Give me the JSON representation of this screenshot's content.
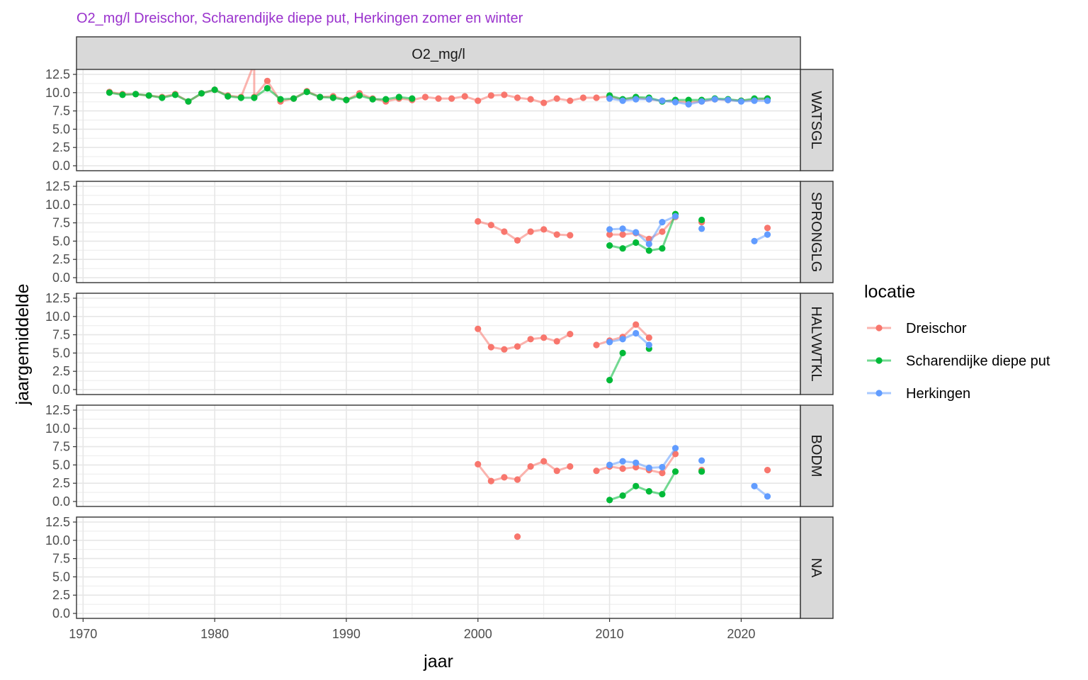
{
  "title": "O2_mg/l Dreischor, Scharendijke diepe put, Herkingen zomer en winter",
  "colors": {
    "title": "#9a32cd",
    "Dreischor": "#f8766d",
    "Scharendijke diepe put": "#00ba38",
    "Herkingen": "#619cff"
  },
  "chart_data": {
    "type": "line",
    "column_strip": "O2_mg/l",
    "xlabel": "jaar",
    "ylabel": "jaargemiddelde",
    "xlim": [
      1969.5,
      2024.5
    ],
    "ylim": [
      0,
      12.5
    ],
    "x_ticks": [
      "1970",
      "1980",
      "1990",
      "2000",
      "2010",
      "2020"
    ],
    "y_ticks": [
      "0.0",
      "2.5",
      "5.0",
      "7.5",
      "10.0",
      "12.5"
    ],
    "grid": true,
    "legend": {
      "title": "locatie",
      "position": "right",
      "entries": [
        "Dreischor",
        "Scharendijke diepe put",
        "Herkingen"
      ]
    },
    "panels": [
      {
        "name": "WATSGL",
        "series": [
          {
            "name": "Dreischor",
            "points": [
              [
                1972,
                10.1
              ],
              [
                1973,
                9.8
              ],
              [
                1974,
                9.8
              ],
              [
                1975,
                9.6
              ],
              [
                1976,
                9.4
              ],
              [
                1977,
                9.8
              ],
              [
                1978,
                8.8
              ],
              [
                1979,
                9.9
              ],
              [
                1980,
                10.4
              ],
              [
                1981,
                9.6
              ],
              [
                1982,
                9.4
              ],
              [
                1983,
                14.0
              ],
              [
                1983,
                9.4
              ],
              [
                1984,
                11.6
              ],
              [
                1985,
                8.8
              ],
              [
                1986,
                9.2
              ],
              [
                1987,
                10.2
              ],
              [
                1988,
                9.4
              ],
              [
                1989,
                9.5
              ],
              [
                1990,
                9.0
              ],
              [
                1991,
                9.9
              ],
              [
                1992,
                9.2
              ],
              [
                1993,
                8.8
              ],
              [
                1994,
                9.2
              ],
              [
                1995,
                9.0
              ],
              [
                1996,
                9.4
              ],
              [
                1997,
                9.2
              ],
              [
                1998,
                9.2
              ],
              [
                1999,
                9.5
              ],
              [
                2000,
                8.9
              ],
              [
                2001,
                9.6
              ],
              [
                2002,
                9.7
              ],
              [
                2003,
                9.3
              ],
              [
                2004,
                9.1
              ],
              [
                2005,
                8.6
              ],
              [
                2006,
                9.2
              ],
              [
                2007,
                8.9
              ],
              [
                2008,
                9.3
              ],
              [
                2009,
                9.3
              ],
              [
                2010,
                9.5
              ],
              [
                2011,
                9.0
              ],
              [
                2012,
                9.3
              ],
              [
                2013,
                9.1
              ],
              [
                2014,
                8.9
              ],
              [
                2015,
                8.8
              ],
              [
                2016,
                8.7
              ],
              [
                2017,
                8.8
              ],
              [
                2018,
                9.1
              ],
              [
                2019,
                9.0
              ],
              [
                2020,
                8.9
              ],
              [
                2021,
                9.0
              ],
              [
                2022,
                9.2
              ]
            ]
          },
          {
            "name": "Scharendijke diepe put",
            "points": [
              [
                1972,
                10.0
              ],
              [
                1973,
                9.7
              ],
              [
                1974,
                9.8
              ],
              [
                1975,
                9.6
              ],
              [
                1976,
                9.3
              ],
              [
                1977,
                9.7
              ],
              [
                1978,
                8.8
              ],
              [
                1979,
                9.9
              ],
              [
                1980,
                10.4
              ],
              [
                1981,
                9.5
              ],
              [
                1982,
                9.3
              ],
              [
                1983,
                9.3
              ],
              [
                1984,
                10.6
              ],
              [
                1985,
                9.1
              ],
              [
                1986,
                9.2
              ],
              [
                1987,
                10.1
              ],
              [
                1988,
                9.4
              ],
              [
                1989,
                9.3
              ],
              [
                1990,
                9.0
              ],
              [
                1991,
                9.6
              ],
              [
                1992,
                9.1
              ],
              [
                1993,
                9.1
              ],
              [
                1994,
                9.4
              ],
              [
                1995,
                9.2
              ],
              [
                null,
                null
              ],
              [
                2010,
                9.6
              ],
              [
                2011,
                9.1
              ],
              [
                2012,
                9.4
              ],
              [
                2013,
                9.3
              ],
              [
                2014,
                8.8
              ],
              [
                2015,
                9.0
              ],
              [
                2016,
                9.0
              ],
              [
                2017,
                9.0
              ],
              [
                2018,
                9.2
              ],
              [
                2019,
                9.1
              ],
              [
                2020,
                8.9
              ],
              [
                2021,
                9.2
              ],
              [
                2022,
                9.2
              ]
            ]
          },
          {
            "name": "Herkingen",
            "points": [
              [
                2010,
                9.2
              ],
              [
                2011,
                8.9
              ],
              [
                2012,
                9.1
              ],
              [
                2013,
                9.1
              ],
              [
                2014,
                8.9
              ],
              [
                2015,
                8.7
              ],
              [
                2016,
                8.4
              ],
              [
                2017,
                8.8
              ],
              [
                2018,
                9.1
              ],
              [
                2019,
                9.0
              ],
              [
                2020,
                8.8
              ],
              [
                2021,
                8.9
              ],
              [
                2022,
                8.9
              ]
            ]
          }
        ]
      },
      {
        "name": "SPRONGLG",
        "series": [
          {
            "name": "Dreischor",
            "points": [
              [
                2000,
                7.7
              ],
              [
                2001,
                7.2
              ],
              [
                2002,
                6.3
              ],
              [
                2003,
                5.1
              ],
              [
                2004,
                6.3
              ],
              [
                2005,
                6.6
              ],
              [
                2006,
                5.9
              ],
              [
                2007,
                5.8
              ],
              [
                null,
                null
              ],
              [
                2010,
                5.9
              ],
              [
                2011,
                5.9
              ],
              [
                2012,
                6.1
              ],
              [
                2013,
                5.3
              ],
              [
                2014,
                6.3
              ],
              [
                2015,
                8.3
              ],
              [
                null,
                null
              ],
              [
                2017,
                7.6
              ],
              [
                null,
                null
              ],
              [
                2022,
                6.8
              ]
            ]
          },
          {
            "name": "Scharendijke diepe put",
            "points": [
              [
                2010,
                4.4
              ],
              [
                2011,
                4.0
              ],
              [
                2012,
                4.8
              ],
              [
                2013,
                3.7
              ],
              [
                2014,
                4.0
              ],
              [
                2015,
                8.7
              ],
              [
                null,
                null
              ],
              [
                2017,
                7.9
              ]
            ]
          },
          {
            "name": "Herkingen",
            "points": [
              [
                2010,
                6.6
              ],
              [
                2011,
                6.7
              ],
              [
                2012,
                6.2
              ],
              [
                2013,
                4.6
              ],
              [
                2014,
                7.6
              ],
              [
                2015,
                8.4
              ],
              [
                null,
                null
              ],
              [
                2017,
                6.7
              ],
              [
                null,
                null
              ],
              [
                2021,
                5.0
              ],
              [
                2022,
                5.9
              ]
            ]
          }
        ]
      },
      {
        "name": "HALVWTKL",
        "series": [
          {
            "name": "Dreischor",
            "points": [
              [
                2000,
                8.3
              ],
              [
                2001,
                5.8
              ],
              [
                2002,
                5.5
              ],
              [
                2003,
                5.9
              ],
              [
                2004,
                6.9
              ],
              [
                2005,
                7.1
              ],
              [
                2006,
                6.6
              ],
              [
                2007,
                7.6
              ],
              [
                null,
                null
              ],
              [
                2009,
                6.1
              ],
              [
                2010,
                6.7
              ],
              [
                2011,
                7.2
              ],
              [
                2012,
                8.9
              ],
              [
                2013,
                7.1
              ]
            ]
          },
          {
            "name": "Scharendijke diepe put",
            "points": [
              [
                2010,
                1.3
              ],
              [
                2011,
                5.0
              ],
              [
                null,
                null
              ],
              [
                2013,
                5.6
              ]
            ]
          },
          {
            "name": "Herkingen",
            "points": [
              [
                2010,
                6.5
              ],
              [
                2011,
                6.9
              ],
              [
                2012,
                7.7
              ],
              [
                2013,
                6.1
              ]
            ]
          }
        ]
      },
      {
        "name": "BODM",
        "series": [
          {
            "name": "Dreischor",
            "points": [
              [
                2000,
                5.1
              ],
              [
                2001,
                2.8
              ],
              [
                2002,
                3.3
              ],
              [
                2003,
                3.0
              ],
              [
                2004,
                4.8
              ],
              [
                2005,
                5.5
              ],
              [
                2006,
                4.2
              ],
              [
                2007,
                4.8
              ],
              [
                null,
                null
              ],
              [
                2009,
                4.2
              ],
              [
                2010,
                4.8
              ],
              [
                2011,
                4.5
              ],
              [
                2012,
                4.7
              ],
              [
                2013,
                4.3
              ],
              [
                2014,
                3.9
              ],
              [
                2015,
                6.5
              ],
              [
                null,
                null
              ],
              [
                2017,
                4.3
              ],
              [
                null,
                null
              ],
              [
                2022,
                4.3
              ]
            ]
          },
          {
            "name": "Scharendijke diepe put",
            "points": [
              [
                2010,
                0.2
              ],
              [
                2011,
                0.8
              ],
              [
                2012,
                2.1
              ],
              [
                2013,
                1.4
              ],
              [
                2014,
                1.0
              ],
              [
                2015,
                4.1
              ],
              [
                null,
                null
              ],
              [
                2017,
                4.1
              ]
            ]
          },
          {
            "name": "Herkingen",
            "points": [
              [
                2010,
                5.0
              ],
              [
                2011,
                5.5
              ],
              [
                2012,
                5.3
              ],
              [
                2013,
                4.6
              ],
              [
                2014,
                4.7
              ],
              [
                2015,
                7.3
              ],
              [
                null,
                null
              ],
              [
                2017,
                5.6
              ],
              [
                null,
                null
              ],
              [
                2021,
                2.1
              ],
              [
                2022,
                0.7
              ]
            ]
          }
        ]
      },
      {
        "name": "NA",
        "series": [
          {
            "name": "Dreischor",
            "points": [
              [
                2003,
                10.5
              ]
            ]
          }
        ]
      }
    ]
  }
}
